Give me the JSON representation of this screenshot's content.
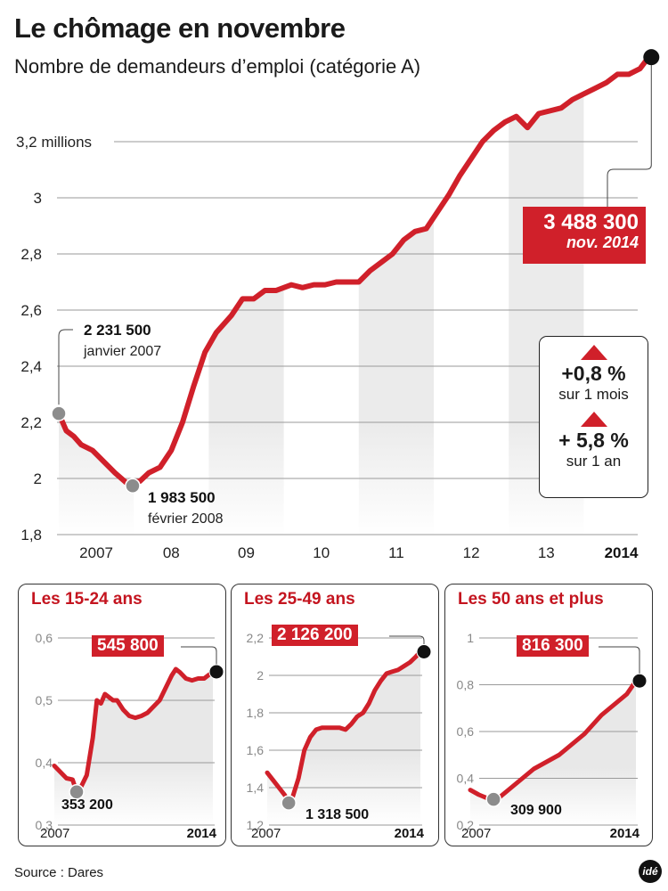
{
  "header": {
    "title": "Le chômage en novembre",
    "subtitle": "Nombre de demandeurs d’emploi (catégorie A)"
  },
  "main_chart": {
    "latest_value": "3 488 300",
    "latest_date": "nov. 2014",
    "start_annotation": {
      "value": "2 231 500",
      "date": "janvier 2007"
    },
    "min_annotation": {
      "value": "1 983 500",
      "date": "février 2008"
    },
    "stats": {
      "month_change": "+0,8 %",
      "month_label": "sur 1 mois",
      "year_change": "+ 5,8 %",
      "year_label": "sur 1 an"
    }
  },
  "colors": {
    "accent": "#d0202a",
    "band": "#ebebeb",
    "marker_start": "#8c8c8c",
    "marker_end": "#111111"
  },
  "footer": {
    "source": "Source : Dares",
    "logo": "idé"
  },
  "chart_data": [
    {
      "type": "line",
      "title": "Le chômage en novembre",
      "subtitle": "Nombre de demandeurs d’emploi (catégorie A)",
      "ylabel": "millions",
      "ylim": [
        1.8,
        3.5
      ],
      "yticks": [
        1.8,
        2.0,
        2.2,
        2.4,
        2.6,
        2.8,
        3.0,
        3.2
      ],
      "ytick_labels": [
        "1,8",
        "2",
        "2,2",
        "2,4",
        "2,6",
        "2,8",
        "3",
        "3,2 millions"
      ],
      "xtick_labels": [
        "2007",
        "08",
        "09",
        "10",
        "11",
        "12",
        "13",
        "2014"
      ],
      "grid": true,
      "x_unit": "year (fractional, 2007.0 = janvier 2007)",
      "series": [
        {
          "name": "Demandeurs d'emploi catégorie A (millions)",
          "x": [
            2007.0,
            2007.1,
            2007.2,
            2007.3,
            2007.45,
            2007.6,
            2007.75,
            2007.9,
            2008.08,
            2008.2,
            2008.35,
            2008.5,
            2008.65,
            2008.8,
            2008.95,
            2009.1,
            2009.3,
            2009.45,
            2009.6,
            2009.75,
            2009.9,
            2010.1,
            2010.25,
            2010.4,
            2010.55,
            2010.7,
            2010.85,
            2011.0,
            2011.15,
            2011.3,
            2011.45,
            2011.6,
            2011.75,
            2011.9,
            2012.05,
            2012.2,
            2012.35,
            2012.5,
            2012.65,
            2012.8,
            2012.95,
            2013.1,
            2013.25,
            2013.4,
            2013.55,
            2013.7,
            2013.85,
            2014.0,
            2014.15,
            2014.3,
            2014.45,
            2014.6,
            2014.75,
            2014.83
          ],
          "values": [
            2.2315,
            2.17,
            2.15,
            2.12,
            2.1,
            2.06,
            2.02,
            1.985,
            1.99,
            2.02,
            2.04,
            2.1,
            2.2,
            2.33,
            2.45,
            2.52,
            2.58,
            2.64,
            2.64,
            2.67,
            2.67,
            2.69,
            2.68,
            2.69,
            2.69,
            2.7,
            2.7,
            2.7,
            2.74,
            2.77,
            2.8,
            2.85,
            2.88,
            2.89,
            2.95,
            3.01,
            3.08,
            3.14,
            3.2,
            3.24,
            3.27,
            3.29,
            3.25,
            3.3,
            3.31,
            3.32,
            3.35,
            3.37,
            3.39,
            3.41,
            3.44,
            3.44,
            3.46,
            3.4883
          ]
        }
      ],
      "highlight_bands_years": [
        2007,
        2009,
        2011,
        2013
      ],
      "annotations": [
        {
          "x": 2007.0,
          "value": 2.2315,
          "label": "2 231 500",
          "sub": "janvier 2007"
        },
        {
          "x": 2008.08,
          "value": 1.9835,
          "label": "1 983 500",
          "sub": "février 2008"
        },
        {
          "x": 2014.83,
          "value": 3.4883,
          "label": "3 488 300",
          "sub": "nov. 2014"
        }
      ]
    },
    {
      "type": "line",
      "title": "Les 15-24 ans",
      "ylim": [
        0.3,
        0.6
      ],
      "yticks": [
        0.3,
        0.4,
        0.5,
        0.6
      ],
      "ytick_labels": [
        "0,3",
        "0,4",
        "0,5",
        "0,6"
      ],
      "xtick_labels": [
        "2007",
        "2014"
      ],
      "series": [
        {
          "name": "15-24 ans (millions)",
          "x": [
            2007.0,
            2007.3,
            2007.6,
            2007.9,
            2008.1,
            2008.3,
            2008.6,
            2008.9,
            2009.1,
            2009.3,
            2009.5,
            2009.7,
            2009.9,
            2010.1,
            2010.4,
            2010.7,
            2011.0,
            2011.3,
            2011.6,
            2011.9,
            2012.2,
            2012.5,
            2012.8,
            2013.0,
            2013.2,
            2013.5,
            2013.8,
            2014.1,
            2014.4,
            2014.83
          ],
          "values": [
            0.395,
            0.385,
            0.375,
            0.373,
            0.3532,
            0.36,
            0.38,
            0.44,
            0.5,
            0.495,
            0.51,
            0.505,
            0.5,
            0.5,
            0.485,
            0.475,
            0.472,
            0.475,
            0.48,
            0.49,
            0.5,
            0.52,
            0.54,
            0.55,
            0.545,
            0.535,
            0.532,
            0.535,
            0.535,
            0.5458
          ]
        }
      ],
      "annotations": [
        {
          "value": 0.3532,
          "label": "353 200"
        },
        {
          "value": 0.5458,
          "label": "545 800"
        }
      ]
    },
    {
      "type": "line",
      "title": "Les 25-49 ans",
      "ylim": [
        1.2,
        2.2
      ],
      "yticks": [
        1.2,
        1.4,
        1.6,
        1.8,
        2.0,
        2.2
      ],
      "ytick_labels": [
        "1,2",
        "1,4",
        "1,6",
        "1,8",
        "2",
        "2,2"
      ],
      "xtick_labels": [
        "2007",
        "2014"
      ],
      "series": [
        {
          "name": "25-49 ans (millions)",
          "x": [
            2007.0,
            2007.3,
            2007.6,
            2007.9,
            2008.1,
            2008.3,
            2008.6,
            2008.9,
            2009.2,
            2009.5,
            2009.8,
            2010.1,
            2010.4,
            2010.7,
            2011.0,
            2011.3,
            2011.6,
            2011.9,
            2012.2,
            2012.5,
            2012.8,
            2013.1,
            2013.4,
            2013.7,
            2014.0,
            2014.3,
            2014.6,
            2014.83
          ],
          "values": [
            1.48,
            1.44,
            1.4,
            1.36,
            1.3185,
            1.35,
            1.45,
            1.6,
            1.67,
            1.71,
            1.72,
            1.72,
            1.72,
            1.72,
            1.71,
            1.74,
            1.78,
            1.8,
            1.85,
            1.92,
            1.97,
            2.01,
            2.02,
            2.03,
            2.05,
            2.07,
            2.1,
            2.1262
          ]
        }
      ],
      "annotations": [
        {
          "value": 1.3185,
          "label": "1 318 500"
        },
        {
          "value": 2.1262,
          "label": "2 126 200"
        }
      ]
    },
    {
      "type": "line",
      "title": "Les 50 ans et plus",
      "ylim": [
        0.2,
        1.0
      ],
      "yticks": [
        0.2,
        0.4,
        0.6,
        0.8,
        1.0
      ],
      "ytick_labels": [
        "0,2",
        "0,4",
        "0,6",
        "0,8",
        "1"
      ],
      "xtick_labels": [
        "2007",
        "2014"
      ],
      "series": [
        {
          "name": "50 ans et plus (millions)",
          "x": [
            2007.0,
            2007.4,
            2007.8,
            2008.1,
            2008.4,
            2008.8,
            2009.2,
            2009.6,
            2010.0,
            2010.4,
            2010.8,
            2011.2,
            2011.6,
            2012.0,
            2012.4,
            2012.8,
            2013.2,
            2013.6,
            2014.0,
            2014.4,
            2014.83
          ],
          "values": [
            0.35,
            0.33,
            0.315,
            0.3099,
            0.32,
            0.35,
            0.38,
            0.41,
            0.44,
            0.46,
            0.48,
            0.5,
            0.53,
            0.56,
            0.59,
            0.63,
            0.67,
            0.7,
            0.73,
            0.76,
            0.8163
          ]
        }
      ],
      "annotations": [
        {
          "value": 0.3099,
          "label": "309 900"
        },
        {
          "value": 0.8163,
          "label": "816 300"
        }
      ]
    }
  ]
}
